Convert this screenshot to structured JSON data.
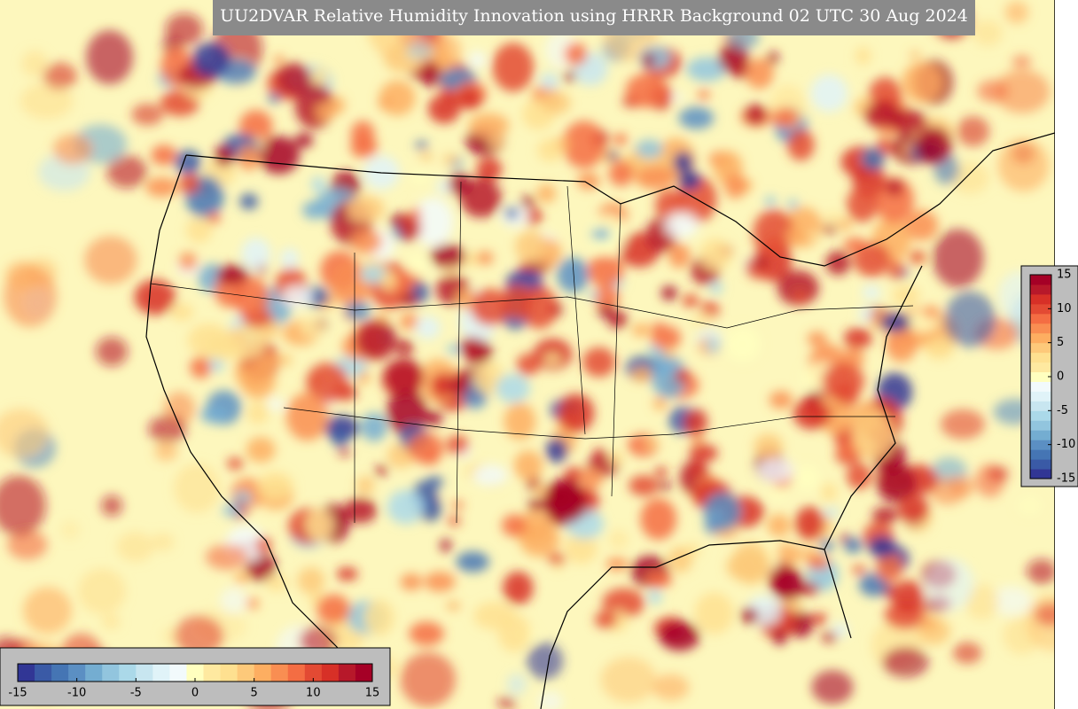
{
  "title": "UU2DVAR Relative Humidity Innovation using HRRR Background 02 UTC 30 Aug 2024",
  "colormap": [
    "#313695",
    "#3a5aa6",
    "#4575b4",
    "#5b8fc3",
    "#74add1",
    "#92c5de",
    "#abd9e9",
    "#c8e6f0",
    "#e0f3f8",
    "#f2fafc",
    "#ffffbf",
    "#fee9a0",
    "#fee090",
    "#fdc97a",
    "#fdae61",
    "#f98e52",
    "#f46d43",
    "#e34a33",
    "#d73027",
    "#b7182a",
    "#a50026"
  ],
  "colorbars": [
    {
      "orientation": "horizontal",
      "range": [
        -15,
        15
      ],
      "ticks": [
        -15,
        -10,
        -5,
        0,
        5,
        10,
        15
      ]
    },
    {
      "orientation": "vertical",
      "range": [
        -15,
        15
      ],
      "ticks": [
        15,
        10,
        5,
        0,
        -5,
        -10,
        -15
      ]
    }
  ]
}
